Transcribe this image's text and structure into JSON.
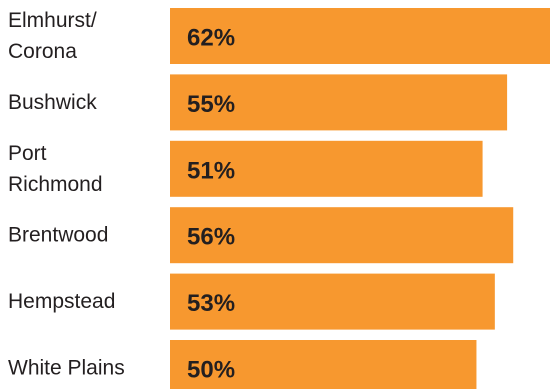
{
  "chart_data": {
    "type": "bar",
    "orientation": "horizontal",
    "categories": [
      "Elmhurst/ Corona",
      "Bushwick",
      "Port Richmond",
      "Brentwood",
      "Hempstead",
      "White Plains"
    ],
    "category_lines": [
      [
        "Elmhurst/",
        "Corona"
      ],
      [
        "Bushwick"
      ],
      [
        "Port",
        "Richmond"
      ],
      [
        "Brentwood"
      ],
      [
        "Hempstead"
      ],
      [
        "White Plains"
      ]
    ],
    "values": [
      62,
      55,
      51,
      56,
      53,
      50
    ],
    "value_labels": [
      "62%",
      "55%",
      "51%",
      "56%",
      "53%",
      "50%"
    ],
    "bar_color": "#f7982f",
    "title": "",
    "xlabel": "",
    "ylabel": "",
    "grid": false,
    "legend": false
  }
}
